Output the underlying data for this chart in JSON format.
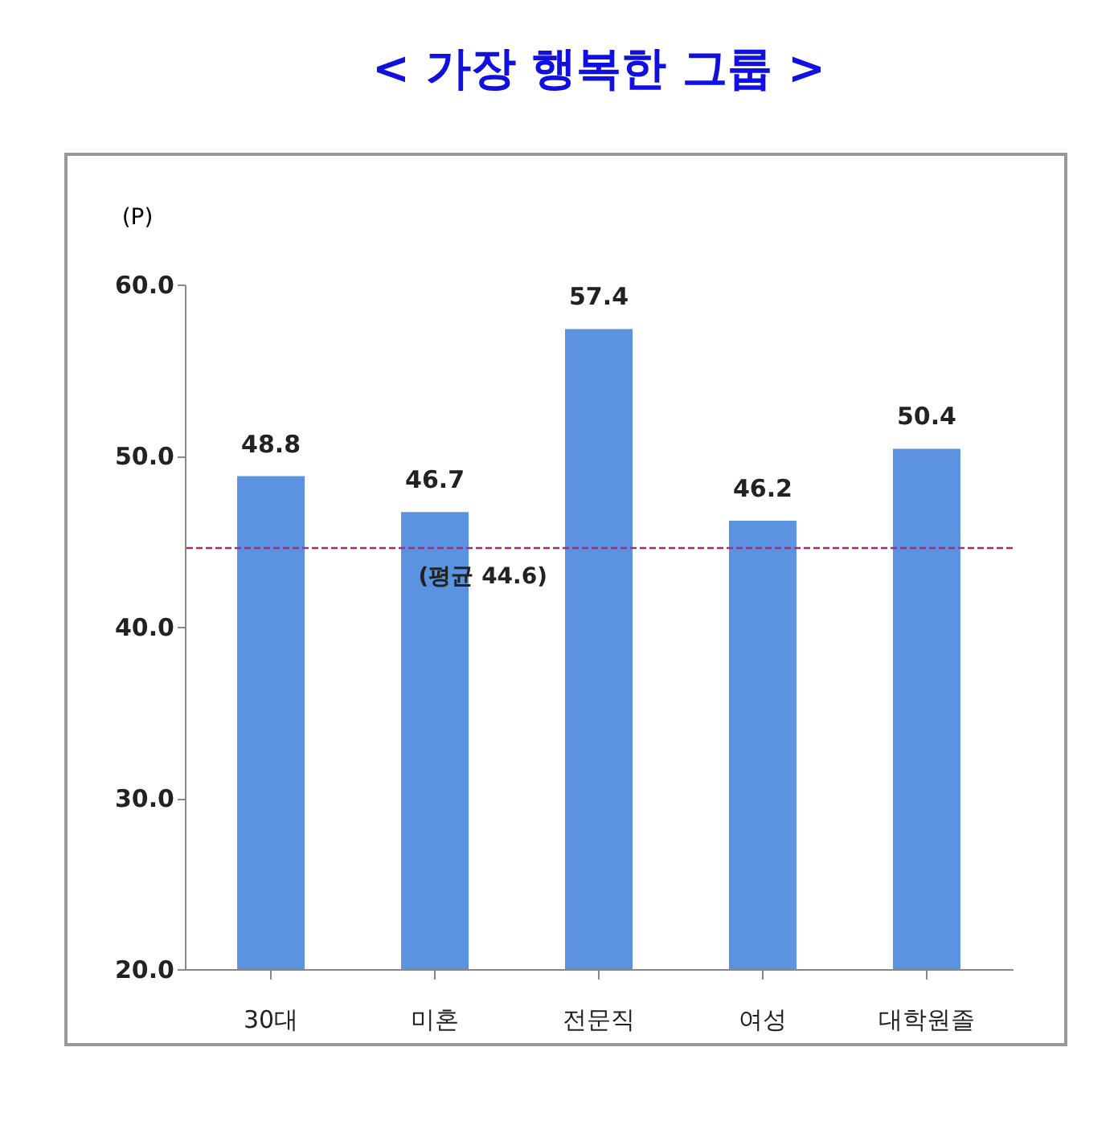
{
  "chart_data": {
    "type": "bar",
    "title": "< 가장 행복한 그룹 >",
    "ylabel": "(P)",
    "categories": [
      "30대",
      "미혼",
      "전문직",
      "여성",
      "대학원졸"
    ],
    "values": [
      48.8,
      46.7,
      57.4,
      46.2,
      50.4
    ],
    "color": "#5b93e0",
    "ylim": [
      20,
      60
    ],
    "yticks": [
      {
        "value": 20,
        "label": "20.0"
      },
      {
        "value": 30,
        "label": "30.0"
      },
      {
        "value": 40,
        "label": "40.0"
      },
      {
        "value": 50,
        "label": "50.0"
      },
      {
        "value": 60,
        "label": "60.0"
      }
    ],
    "data_labels": true,
    "grid": false,
    "ref_lines": [
      {
        "axis": "y",
        "value": 44.6,
        "label": "(평균 44.6)",
        "color": "#a0307a",
        "line_style": "dashed"
      }
    ]
  }
}
